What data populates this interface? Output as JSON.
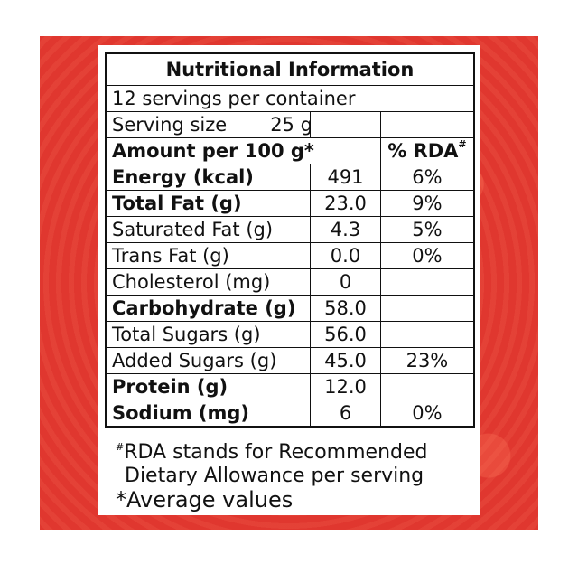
{
  "label": {
    "title": "Nutritional Information",
    "servings": "12 servings per container",
    "serving_size_label": "Serving size",
    "serving_size_value": "25 g",
    "amount_header": "Amount per 100 g*",
    "rda_header": "% RDA",
    "rda_header_mark": "#",
    "rows": [
      {
        "name": "Energy (kcal)",
        "value": "491",
        "rda": "6%",
        "bold": true
      },
      {
        "name": "Total Fat (g)",
        "value": "23.0",
        "rda": "9%",
        "bold": true
      },
      {
        "name": "Saturated Fat (g)",
        "value": "4.3",
        "rda": "5%",
        "bold": false
      },
      {
        "name": "Trans Fat (g)",
        "value": "0.0",
        "rda": "0%",
        "bold": false
      },
      {
        "name": "Cholesterol (mg)",
        "value": "0",
        "rda": "",
        "bold": false
      },
      {
        "name": "Carbohydrate (g)",
        "value": "58.0",
        "rda": "",
        "bold": true
      },
      {
        "name": "Total Sugars (g)",
        "value": "56.0",
        "rda": "",
        "bold": false
      },
      {
        "name": "Added Sugars (g)",
        "value": "45.0",
        "rda": "23%",
        "bold": false
      },
      {
        "name": "Protein (g)",
        "value": "12.0",
        "rda": "",
        "bold": true
      },
      {
        "name": "Sodium (mg)",
        "value": "6",
        "rda": "0%",
        "bold": true
      }
    ],
    "footnote_mark": "#",
    "footnote_line1": "RDA stands for Recommended",
    "footnote_line2": "Dietary Allowance per serving",
    "footnote_avg": "*Average values"
  },
  "colors": {
    "frame": "#e0372f",
    "text": "#111111"
  }
}
